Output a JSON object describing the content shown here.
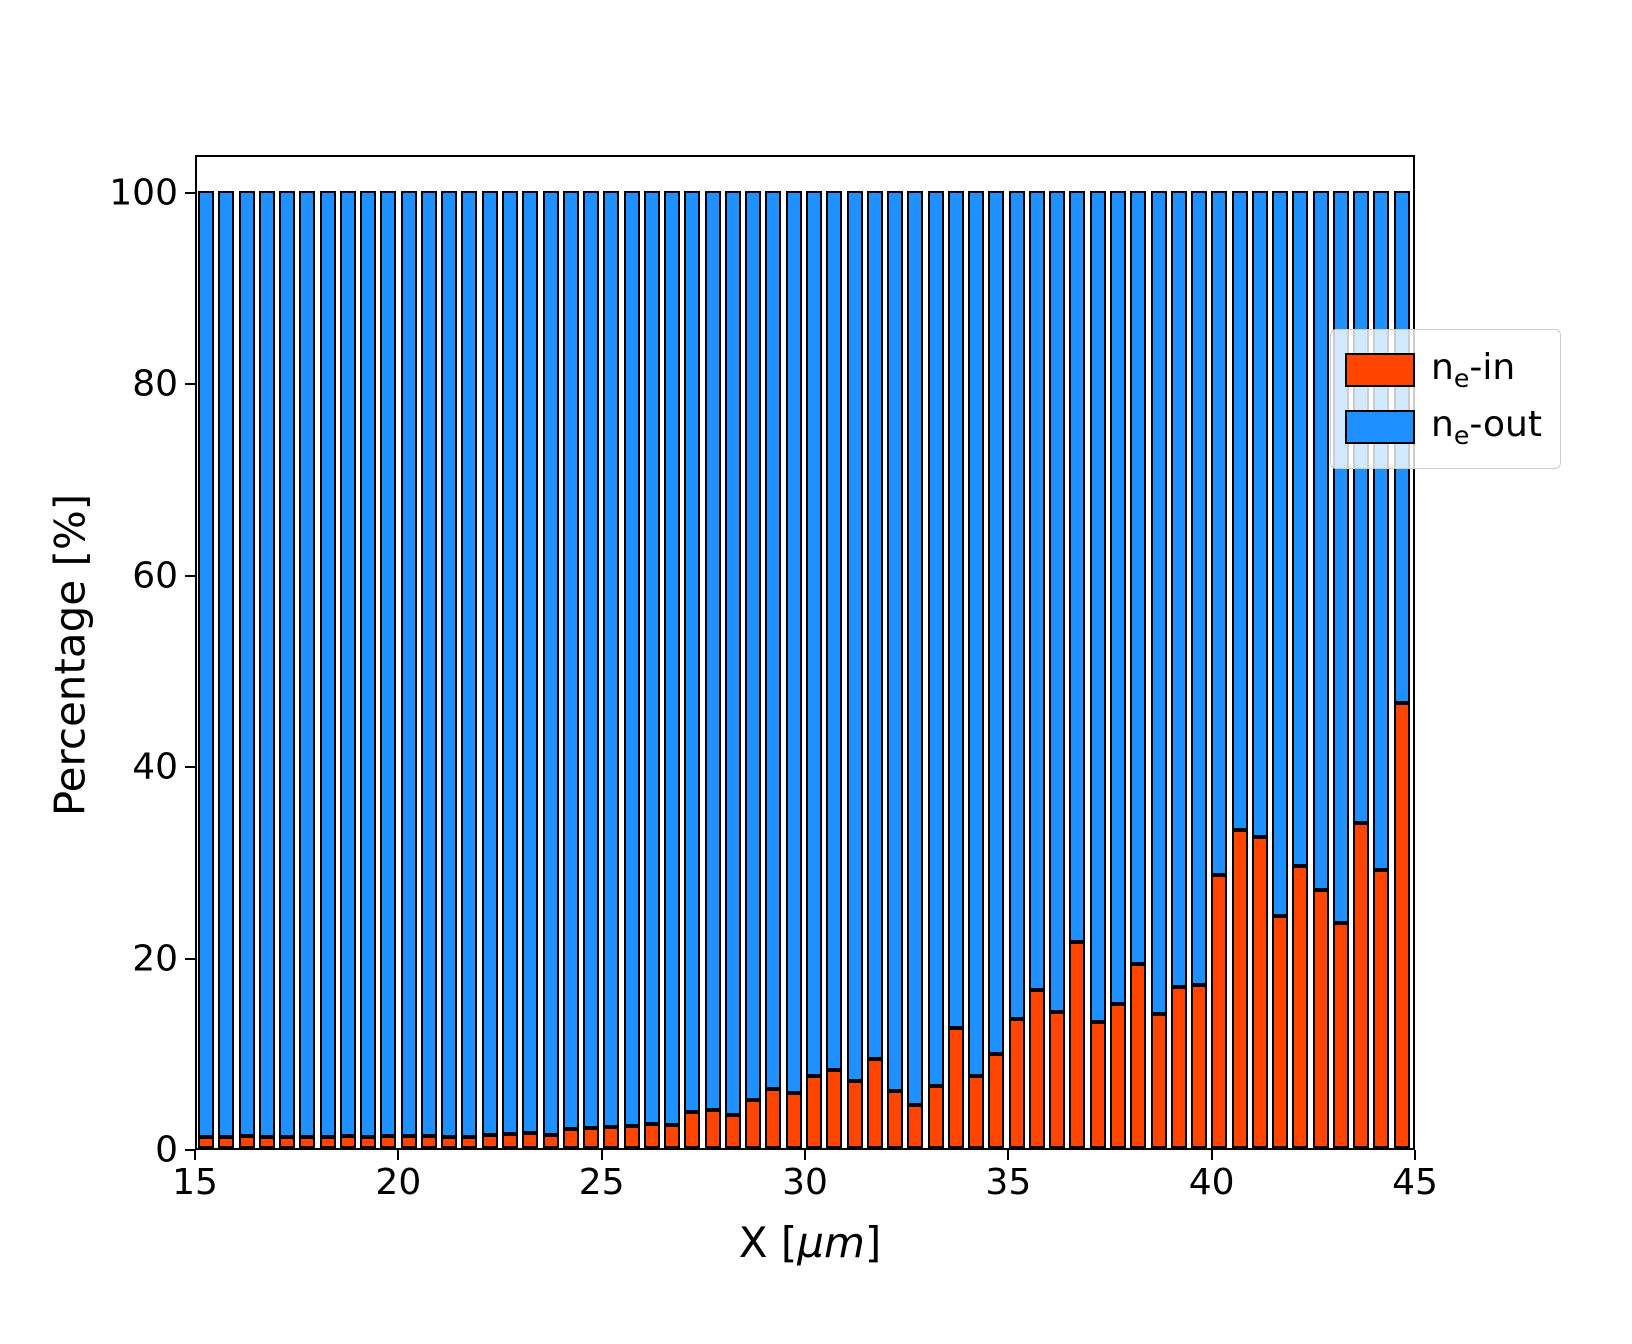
{
  "labels": {
    "ylabel": "Percentage  [%]",
    "xlabel_pre": "X  [",
    "xlabel_italic": "μm",
    "xlabel_post": "]"
  },
  "legend": {
    "entries": [
      {
        "pre": "n",
        "sub": "e",
        "post": "-in",
        "color": "#ff4500"
      },
      {
        "pre": "n",
        "sub": "e",
        "post": "-out",
        "color": "#1e90ff"
      }
    ]
  },
  "chart_data": {
    "type": "bar",
    "stacked": true,
    "title": "",
    "xlabel": "X [μm]",
    "ylabel": "Percentage [%]",
    "xlim": [
      15,
      45
    ],
    "ylim": [
      0,
      104
    ],
    "xticks": [
      15,
      20,
      25,
      30,
      35,
      40,
      45
    ],
    "yticks": [
      0,
      20,
      40,
      60,
      80,
      100
    ],
    "bar_width_um": 0.4,
    "bar_edge_color": "#000000",
    "legend_position": "upper right",
    "grid": false,
    "x": [
      15.0,
      15.5,
      16.0,
      16.5,
      17.0,
      17.5,
      18.0,
      18.5,
      19.0,
      19.5,
      20.0,
      20.5,
      21.0,
      21.5,
      22.0,
      22.5,
      23.0,
      23.5,
      24.0,
      24.5,
      25.0,
      25.5,
      26.0,
      26.5,
      27.0,
      27.5,
      28.0,
      28.5,
      29.0,
      29.5,
      30.0,
      30.5,
      31.0,
      31.5,
      32.0,
      32.5,
      33.0,
      33.5,
      34.0,
      34.5,
      35.0,
      35.5,
      36.0,
      36.5,
      37.0,
      37.5,
      38.0,
      38.5,
      39.0,
      39.5,
      40.0,
      40.5,
      41.0,
      41.5,
      42.0,
      42.5,
      43.0,
      43.5,
      44.0,
      44.5
    ],
    "series": [
      {
        "name": "ne-in",
        "color": "#ff4500",
        "values": [
          1.2,
          1.2,
          1.3,
          1.2,
          1.1,
          1.2,
          1.2,
          1.3,
          1.2,
          1.3,
          1.3,
          1.3,
          1.2,
          1.2,
          1.4,
          1.5,
          1.6,
          1.4,
          2.0,
          2.1,
          2.2,
          2.3,
          2.5,
          2.4,
          3.8,
          4.0,
          3.5,
          5.0,
          6.2,
          5.8,
          7.5,
          8.2,
          7.0,
          9.3,
          6.0,
          4.5,
          6.5,
          12.5,
          7.5,
          9.8,
          13.5,
          16.5,
          14.2,
          21.5,
          13.2,
          15.0,
          19.2,
          14.0,
          16.8,
          17.0,
          28.5,
          33.2,
          32.5,
          24.2,
          29.5,
          27.0,
          23.5,
          34.0,
          29.0,
          46.5
        ]
      },
      {
        "name": "ne-out",
        "color": "#1e90ff",
        "values": [
          98.8,
          98.8,
          98.7,
          98.8,
          98.9,
          98.8,
          98.8,
          98.7,
          98.8,
          98.7,
          98.7,
          98.7,
          98.8,
          98.8,
          98.6,
          98.5,
          98.4,
          98.6,
          98.0,
          97.9,
          97.8,
          97.7,
          97.5,
          97.6,
          96.2,
          96.0,
          96.5,
          95.0,
          93.8,
          94.2,
          92.5,
          91.8,
          93.0,
          90.7,
          94.0,
          95.5,
          93.5,
          87.5,
          92.5,
          90.2,
          86.5,
          83.5,
          85.8,
          78.5,
          86.8,
          85.0,
          80.8,
          86.0,
          83.2,
          83.0,
          71.5,
          66.8,
          67.5,
          75.8,
          70.5,
          73.0,
          76.5,
          66.0,
          71.0,
          53.5
        ]
      }
    ]
  }
}
